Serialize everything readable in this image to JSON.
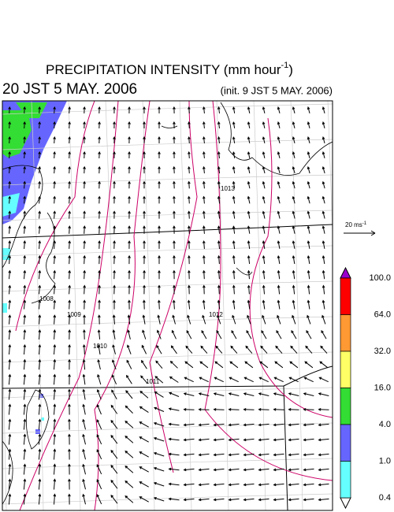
{
  "header": {
    "title": "PRECIPITATION INTENSITY (mm hour",
    "title_exponent": "-1",
    "title_close": ")",
    "valid_time": "20 JST 5 MAY. 2006",
    "init_time": "(init. 9 JST 5 MAY. 2006)"
  },
  "wind_scale": {
    "label": "20 ms",
    "exponent": "-1"
  },
  "colorbar": {
    "levels": [
      "100.0",
      "64.0",
      "32.0",
      "16.0",
      "4.0",
      "1.0",
      "0.4"
    ],
    "colors": [
      "#ff0000",
      "#ff9933",
      "#ffff66",
      "#33dd33",
      "#6666ff",
      "#66ffff"
    ],
    "over_color": "#9900cc",
    "under_color": "#ffffff"
  },
  "isobar_labels": [
    "1008",
    "1009",
    "1010",
    "1011",
    "1012",
    "1013"
  ]
}
